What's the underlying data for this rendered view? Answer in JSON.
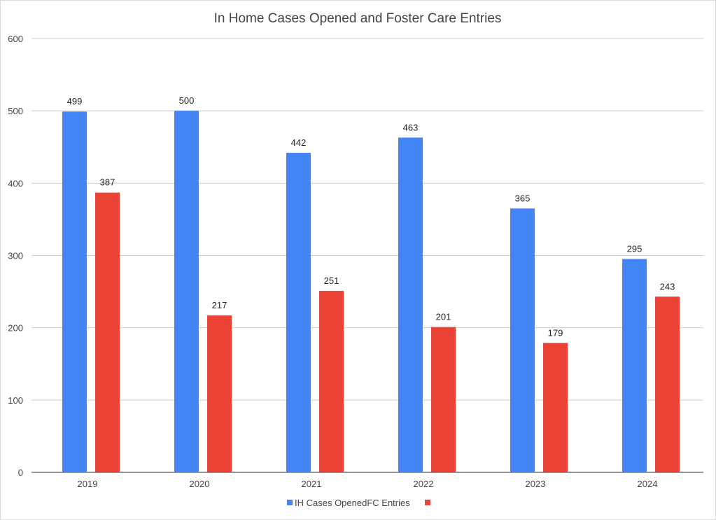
{
  "chart_data": {
    "type": "bar",
    "title": "In Home Cases Opened and Foster Care Entries",
    "categories": [
      "2019",
      "2020",
      "2021",
      "2022",
      "2023",
      "2024"
    ],
    "series": [
      {
        "name": "IH Cases Opened",
        "color": "#4285f4",
        "values": [
          499,
          500,
          442,
          463,
          365,
          295
        ]
      },
      {
        "name": "FC Entries",
        "color": "#ea4335",
        "values": [
          387,
          217,
          251,
          201,
          179,
          243
        ]
      }
    ],
    "yticks": [
      "0",
      "100",
      "200",
      "300",
      "400",
      "500",
      "600"
    ],
    "ylim": [
      0,
      600
    ],
    "xlabel": "",
    "ylabel": "",
    "grid": true,
    "legend": "bottom"
  }
}
